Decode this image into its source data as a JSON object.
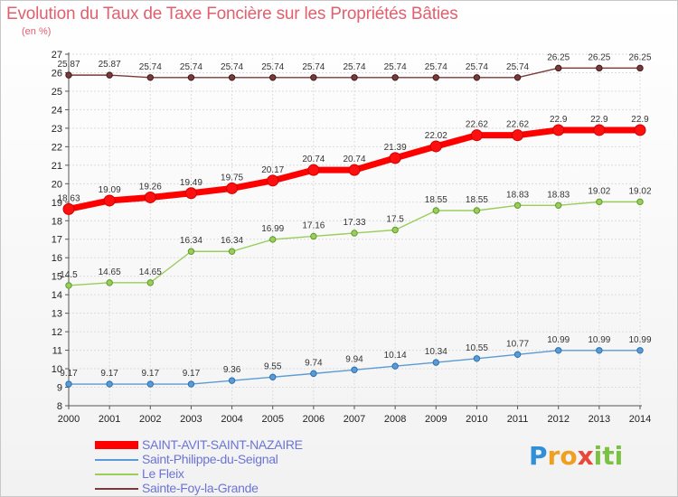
{
  "title": "Evolution du Taux de Taxe Foncière sur les Propriétés Bâties",
  "subtitle": "(en %)",
  "logo": {
    "p": "P",
    "ro": "ro",
    "x": "x",
    "iti": "iti"
  },
  "chart_data": {
    "type": "line",
    "title": "Evolution du Taux de Taxe Foncière sur les Propriétés Bâties",
    "ylabel": "(en %)",
    "xlabel": "",
    "ylim": [
      8,
      27
    ],
    "grid": true,
    "legend_position": "bottom-left",
    "categories": [
      "2000",
      "2001",
      "2002",
      "2003",
      "2004",
      "2005",
      "2006",
      "2007",
      "2008",
      "2009",
      "2010",
      "2011",
      "2012",
      "2013",
      "2014"
    ],
    "yticks": [
      "8",
      "9",
      "10",
      "11",
      "12",
      "13",
      "14",
      "15",
      "16",
      "17",
      "18",
      "19",
      "20",
      "21",
      "22",
      "23",
      "24",
      "25",
      "26",
      "27"
    ],
    "series": [
      {
        "name": "SAINT-AVIT-SAINT-NAZAIRE",
        "color": "#ff0000",
        "values": [
          18.63,
          19.09,
          19.26,
          19.49,
          19.75,
          20.17,
          20.74,
          20.74,
          21.39,
          22.02,
          22.62,
          22.62,
          22.9,
          22.9,
          22.9
        ],
        "labels": [
          "18.63",
          "19.09",
          "19.26",
          "19.49",
          "19.75",
          "20.17",
          "20.74",
          "20.74",
          "21.39",
          "22.02",
          "22.62",
          "22.62",
          "22.9",
          "22.9",
          "22.9"
        ]
      },
      {
        "name": "Saint-Philippe-du-Seignal",
        "color": "#5b9bd5",
        "values": [
          9.17,
          9.17,
          9.17,
          9.17,
          9.36,
          9.55,
          9.74,
          9.94,
          10.14,
          10.34,
          10.55,
          10.77,
          10.99,
          10.99,
          10.99
        ],
        "labels": [
          "9.17",
          "9.17",
          "9.17",
          "9.17",
          "9.36",
          "9.55",
          "9.74",
          "9.94",
          "10.14",
          "10.34",
          "10.55",
          "10.77",
          "10.99",
          "10.99",
          "10.99"
        ]
      },
      {
        "name": "Le Fleix",
        "color": "#9acd5a",
        "values": [
          14.5,
          14.65,
          14.65,
          16.34,
          16.34,
          16.99,
          17.16,
          17.33,
          17.5,
          18.55,
          18.55,
          18.83,
          18.83,
          19.02,
          19.02
        ],
        "labels": [
          "14.5",
          "14.65",
          "14.65",
          "16.34",
          "16.34",
          "16.99",
          "17.16",
          "17.33",
          "17.5",
          "18.55",
          "18.55",
          "18.83",
          "18.83",
          "19.02",
          "19.02"
        ]
      },
      {
        "name": "Sainte-Foy-la-Grande",
        "color": "#7b3a3a",
        "values": [
          25.87,
          25.87,
          25.74,
          25.74,
          25.74,
          25.74,
          25.74,
          25.74,
          25.74,
          25.74,
          25.74,
          25.74,
          26.25,
          26.25,
          26.25
        ],
        "labels": [
          "25.87",
          "25.87",
          "25.74",
          "25.74",
          "25.74",
          "25.74",
          "25.74",
          "25.74",
          "25.74",
          "25.74",
          "25.74",
          "25.74",
          "26.25",
          "26.25",
          "26.25"
        ]
      }
    ]
  }
}
